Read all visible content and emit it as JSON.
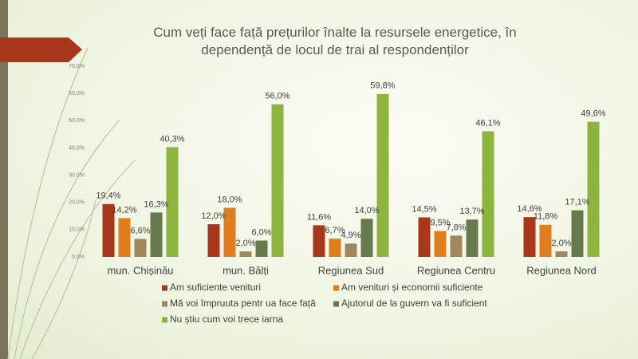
{
  "chart_data": {
    "type": "bar",
    "title": "Cum veți face față prețurilor înalte la resursele energetice, în dependență de locul de trai al respondenților",
    "categories": [
      "mun. Chișinău",
      "mun. Bălți",
      "Regiunea Sud",
      "Regiunea Centru",
      "Regiunea Nord"
    ],
    "series": [
      {
        "name": "Am suficiente venituri",
        "color": "#a9371c",
        "values": [
          19.4,
          12.0,
          11.6,
          14.5,
          14.6
        ],
        "value_labels": [
          "19,4%",
          "12,0%",
          "11,6%",
          "14,5%",
          "14,6%"
        ]
      },
      {
        "name": "Am venituri și economii suficiente",
        "color": "#e07d1c",
        "values": [
          14.2,
          18.0,
          6.7,
          9.5,
          11.8
        ],
        "value_labels": [
          "14,2%",
          "18,0%",
          "6,7%",
          "9,5%",
          "11,8%"
        ]
      },
      {
        "name": "Mă voi împruuta pentr ua face față",
        "color": "#a1875e",
        "values": [
          6.6,
          2.0,
          4.9,
          7.8,
          2.0
        ],
        "value_labels": [
          "6,6%",
          "2,0%",
          "4,9%",
          "7,8%",
          "2,0%"
        ]
      },
      {
        "name": "Ajutorul de la guvern va fi suficient",
        "color": "#677a4b",
        "values": [
          16.3,
          6.0,
          14.0,
          13.7,
          17.1
        ],
        "value_labels": [
          "16,3%",
          "6,0%",
          "14,0%",
          "13,7%",
          "17,1%"
        ]
      },
      {
        "name": "Nu știu cum voi trece iarna",
        "color": "#8db53d",
        "values": [
          40.3,
          56.0,
          59.8,
          46.1,
          49.6
        ],
        "value_labels": [
          "40,3%",
          "56,0%",
          "59,8%",
          "46,1%",
          "49,6%"
        ]
      }
    ],
    "ylim": [
      0,
      70
    ],
    "yticks": [
      {
        "value": 0,
        "label": "0,0%"
      },
      {
        "value": 10,
        "label": "10,0%"
      },
      {
        "value": 20,
        "label": "20,0%"
      },
      {
        "value": 30,
        "label": "30,0%"
      },
      {
        "value": 40,
        "label": "40,0%"
      },
      {
        "value": 50,
        "label": "50,0%"
      },
      {
        "value": 60,
        "label": "60,0%"
      },
      {
        "value": 70,
        "label": "70,0%"
      }
    ],
    "grid": false,
    "legend": "bottom"
  }
}
